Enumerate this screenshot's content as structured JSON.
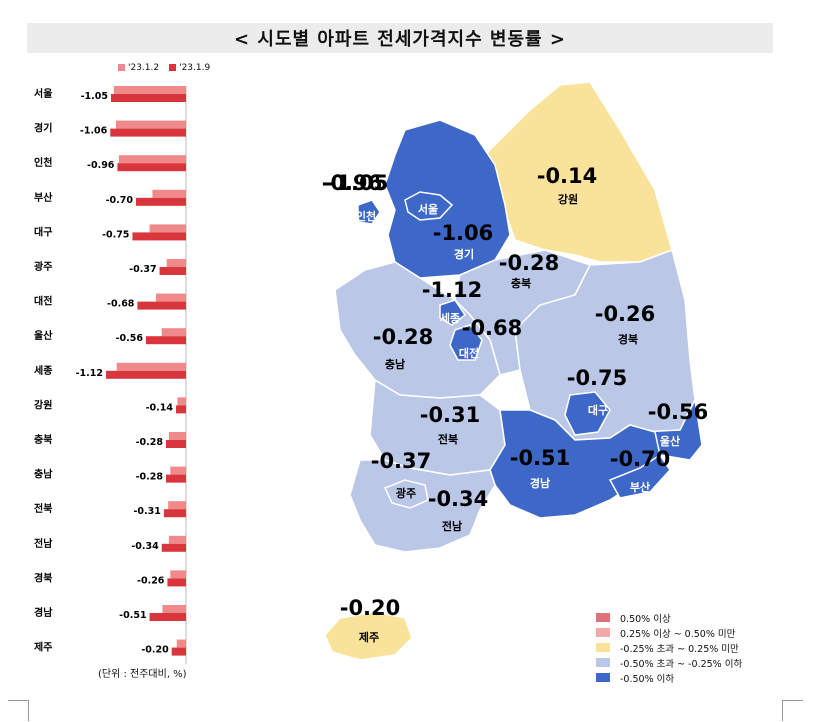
{
  "title": "< 시도별 아파트 전세가격지수 변동률 >",
  "unit_note": "(단위 : 전주대비, %)",
  "colors": {
    "series_prev": "#f08a8a",
    "series_curr": "#d9353c",
    "map_ge_050": "#e0707a",
    "map_025_050": "#f4a9a9",
    "map_neutral": "#f9e39a",
    "map_light_blue": "#bac7e7",
    "map_dark_blue": "#3d68c7"
  },
  "chart_data": {
    "type": "bar",
    "orientation": "horizontal",
    "categories": [
      "서울",
      "경기",
      "인천",
      "부산",
      "대구",
      "광주",
      "대전",
      "울산",
      "세종",
      "강원",
      "충북",
      "충남",
      "전북",
      "전남",
      "경북",
      "경남",
      "제주"
    ],
    "series": [
      {
        "name": "'23.1.2",
        "values": [
          -1.01,
          -0.98,
          -0.94,
          -0.47,
          -0.51,
          -0.27,
          -0.42,
          -0.34,
          -0.97,
          -0.12,
          -0.24,
          -0.22,
          -0.25,
          -0.24,
          -0.22,
          -0.33,
          -0.13
        ]
      },
      {
        "name": "'23.1.9",
        "values": [
          -1.05,
          -1.06,
          -0.96,
          -0.7,
          -0.75,
          -0.37,
          -0.68,
          -0.56,
          -1.12,
          -0.14,
          -0.28,
          -0.28,
          -0.31,
          -0.34,
          -0.26,
          -0.51,
          -0.2
        ]
      }
    ],
    "data_labels": [
      "-1.05",
      "-1.06",
      "-0.96",
      "-0.70",
      "-0.75",
      "-0.37",
      "-0.68",
      "-0.56",
      "-1.12",
      "-0.14",
      "-0.28",
      "-0.28",
      "-0.31",
      "-0.34",
      "-0.26",
      "-0.51",
      "-0.20"
    ],
    "xlim": [
      -1.3,
      0
    ],
    "legend_position": "top",
    "grid": false
  },
  "map": {
    "regions": [
      {
        "name": "서울",
        "value": "-1.05",
        "class": "dark"
      },
      {
        "name": "인천",
        "value": "-0.96",
        "class": "dark"
      },
      {
        "name": "경기",
        "value": "-1.06",
        "class": "dark"
      },
      {
        "name": "강원",
        "value": "-0.14",
        "class": "neutral"
      },
      {
        "name": "충북",
        "value": "-0.28",
        "class": "light"
      },
      {
        "name": "세종",
        "value": "-1.12",
        "class": "dark"
      },
      {
        "name": "대전",
        "value": "-0.68",
        "class": "dark"
      },
      {
        "name": "충남",
        "value": "-0.28",
        "class": "light"
      },
      {
        "name": "경북",
        "value": "-0.26",
        "class": "light"
      },
      {
        "name": "대구",
        "value": "-0.75",
        "class": "dark"
      },
      {
        "name": "울산",
        "value": "-0.56",
        "class": "dark"
      },
      {
        "name": "전북",
        "value": "-0.31",
        "class": "light"
      },
      {
        "name": "경남",
        "value": "-0.51",
        "class": "dark"
      },
      {
        "name": "부산",
        "value": "-0.70",
        "class": "dark"
      },
      {
        "name": "광주",
        "value": "-0.37",
        "class": "light"
      },
      {
        "name": "전남",
        "value": "-0.34",
        "class": "light"
      },
      {
        "name": "제주",
        "value": "-0.20",
        "class": "neutral"
      }
    ],
    "legend": [
      {
        "label": "0.50% 이상",
        "color": "#e0707a"
      },
      {
        "label": "0.25% 이상 ~ 0.50% 미만",
        "color": "#f4a9a9"
      },
      {
        "label": "-0.25% 초과 ~ 0.25% 미만",
        "color": "#f9e39a"
      },
      {
        "label": "-0.50% 초과 ~ -0.25% 이하",
        "color": "#bac7e7"
      },
      {
        "label": "-0.50% 이하",
        "color": "#3d68c7"
      }
    ]
  }
}
